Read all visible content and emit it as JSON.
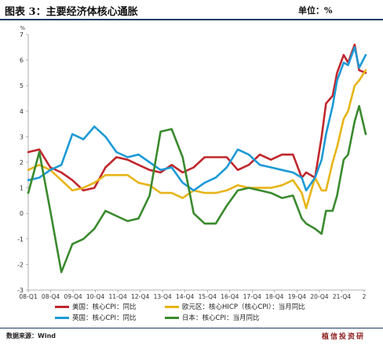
{
  "header": {
    "title": "图表 3：主要经济体核心通胀",
    "unit": "单位：%"
  },
  "footer": {
    "source": "数据来源：Wind",
    "brand": "植信投资研"
  },
  "chart_data": {
    "type": "line",
    "ylabel": "%",
    "ylim": [
      -3,
      7
    ],
    "yticks": [
      -3,
      -2,
      -1,
      0,
      1,
      2,
      3,
      4,
      5,
      6,
      7
    ],
    "xticks": [
      "08-Q1",
      "08-Q4",
      "09-Q4",
      "10-Q4",
      "11-Q4",
      "12-Q4",
      "13-Q4",
      "14-Q4",
      "15-Q4",
      "16-Q4",
      "17-Q4",
      "18-Q4",
      "19-Q4",
      "20-Q4",
      "21-Q4",
      "2"
    ],
    "x_start": 2008.0,
    "x_end": 2023.3,
    "series": [
      {
        "name": "美国：核心CPI：同比",
        "color": "#c0272d",
        "x": [
          2008.0,
          2008.5,
          2009.0,
          2009.5,
          2010.0,
          2010.5,
          2011.0,
          2011.5,
          2012.0,
          2012.5,
          2013.0,
          2013.5,
          2014.0,
          2014.5,
          2015.0,
          2015.5,
          2016.0,
          2016.5,
          2017.0,
          2017.5,
          2018.0,
          2018.5,
          2019.0,
          2019.5,
          2020.0,
          2020.4,
          2020.6,
          2021.0,
          2021.3,
          2021.5,
          2021.8,
          2022.0,
          2022.3,
          2022.5,
          2022.8,
          2023.0,
          2023.3
        ],
        "values": [
          2.4,
          2.5,
          1.8,
          1.6,
          1.3,
          0.9,
          1.0,
          1.8,
          2.2,
          2.1,
          1.9,
          1.7,
          1.6,
          1.9,
          1.6,
          1.8,
          2.2,
          2.2,
          2.2,
          1.7,
          1.9,
          2.3,
          2.1,
          2.3,
          2.3,
          1.4,
          1.6,
          1.4,
          3.0,
          4.3,
          4.6,
          5.5,
          6.2,
          5.9,
          6.6,
          5.6,
          5.5
        ]
      },
      {
        "name": "欧元区：核心HICP（核心CPI）：当月同比",
        "color": "#e8b417",
        "x": [
          2008.0,
          2008.5,
          2009.0,
          2009.5,
          2010.0,
          2010.5,
          2011.0,
          2011.5,
          2012.0,
          2012.5,
          2013.0,
          2013.5,
          2014.0,
          2014.5,
          2015.0,
          2015.5,
          2016.0,
          2016.5,
          2017.0,
          2017.5,
          2018.0,
          2018.5,
          2019.0,
          2019.5,
          2020.0,
          2020.4,
          2020.6,
          2021.0,
          2021.3,
          2021.5,
          2021.8,
          2022.0,
          2022.3,
          2022.5,
          2022.8,
          2023.0,
          2023.3
        ],
        "values": [
          1.7,
          1.9,
          1.7,
          1.3,
          0.9,
          1.0,
          1.2,
          1.5,
          1.5,
          1.5,
          1.2,
          1.1,
          0.8,
          0.8,
          0.6,
          0.9,
          0.8,
          0.8,
          0.9,
          1.1,
          1.0,
          1.0,
          1.0,
          1.1,
          1.3,
          0.8,
          0.2,
          1.4,
          0.9,
          0.9,
          2.0,
          2.6,
          3.7,
          4.0,
          5.0,
          5.2,
          5.6
        ]
      },
      {
        "name": "英国：核心CPI：同比",
        "color": "#1c9ad6",
        "x": [
          2008.0,
          2008.5,
          2009.0,
          2009.5,
          2010.0,
          2010.5,
          2011.0,
          2011.5,
          2012.0,
          2012.5,
          2013.0,
          2013.5,
          2014.0,
          2014.5,
          2015.0,
          2015.5,
          2016.0,
          2016.5,
          2017.0,
          2017.5,
          2018.0,
          2018.5,
          2019.0,
          2019.5,
          2020.0,
          2020.4,
          2020.6,
          2021.0,
          2021.3,
          2021.5,
          2021.8,
          2022.0,
          2022.3,
          2022.5,
          2022.8,
          2023.0,
          2023.3
        ],
        "values": [
          1.3,
          1.4,
          1.7,
          1.9,
          3.1,
          2.9,
          3.4,
          3.0,
          2.4,
          2.2,
          2.3,
          2.0,
          1.7,
          1.8,
          1.2,
          0.9,
          1.2,
          1.4,
          1.8,
          2.5,
          2.3,
          1.9,
          1.8,
          1.7,
          1.6,
          1.4,
          0.9,
          1.4,
          2.1,
          3.1,
          4.2,
          5.2,
          5.9,
          5.8,
          6.5,
          5.7,
          6.2
        ]
      },
      {
        "name": "日本：核心CPI：当月同比",
        "color": "#3a8a2d",
        "x": [
          2008.0,
          2008.5,
          2009.0,
          2009.5,
          2010.0,
          2010.5,
          2011.0,
          2011.5,
          2012.0,
          2012.5,
          2013.0,
          2013.5,
          2014.0,
          2014.5,
          2015.0,
          2015.5,
          2016.0,
          2016.5,
          2017.0,
          2017.5,
          2018.0,
          2018.5,
          2019.0,
          2019.5,
          2020.0,
          2020.4,
          2020.6,
          2021.0,
          2021.3,
          2021.5,
          2021.8,
          2022.0,
          2022.3,
          2022.5,
          2022.8,
          2023.0,
          2023.3
        ],
        "values": [
          0.8,
          2.4,
          0.1,
          -2.3,
          -1.2,
          -1.0,
          -0.6,
          0.1,
          -0.1,
          -0.3,
          -0.2,
          0.7,
          3.2,
          3.3,
          2.2,
          0.0,
          -0.4,
          -0.4,
          0.3,
          0.9,
          1.0,
          0.9,
          0.8,
          0.6,
          0.7,
          -0.2,
          -0.4,
          -0.6,
          -0.8,
          0.1,
          0.1,
          0.7,
          2.1,
          2.3,
          3.6,
          4.2,
          3.1
        ]
      }
    ]
  }
}
